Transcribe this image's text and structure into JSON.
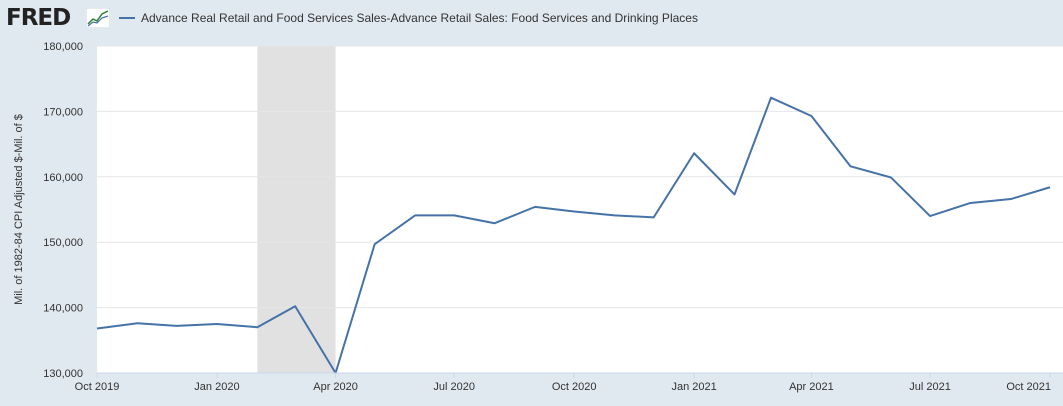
{
  "header": {
    "logo_text": "FRED",
    "logo_graph_icon": "trend-line-icon",
    "legend_label": "Advance Real Retail and Food Services Sales-Advance Retail Sales: Food Services and Drinking Places"
  },
  "colors": {
    "series": "#4572a7",
    "recession": "#e1e1e1",
    "plot_bg": "#ffffff",
    "page_bg": "#e1e9f0",
    "grid": "#e6e6e6"
  },
  "chart_data": {
    "type": "line",
    "title": "",
    "xlabel": "",
    "ylabel": "Mil. of 1982-84 CPI Adjusted $-Mil. of $",
    "ylim": [
      130000,
      180000
    ],
    "xlim": [
      "2019-10-01",
      "2021-10-01"
    ],
    "y_ticks": [
      130000,
      140000,
      150000,
      160000,
      170000,
      180000
    ],
    "y_tick_labels": [
      "130,000",
      "140,000",
      "150,000",
      "160,000",
      "170,000",
      "180,000"
    ],
    "x_ticks": [
      "2019-10-01",
      "2020-01-01",
      "2020-04-01",
      "2020-07-01",
      "2020-10-01",
      "2021-01-01",
      "2021-04-01",
      "2021-07-01",
      "2021-10-01"
    ],
    "x_tick_labels": [
      "Oct 2019",
      "Jan 2020",
      "Apr 2020",
      "Jul 2020",
      "Oct 2020",
      "Jan 2021",
      "Apr 2021",
      "Jul 2021",
      "Oct 2021"
    ],
    "grid": "horizontal",
    "legend": "top",
    "recession_shading": [
      [
        "2020-02-01",
        "2020-04-01"
      ]
    ],
    "series": [
      {
        "name": "Advance Real Retail and Food Services Sales-Advance Retail Sales: Food Services and Drinking Places",
        "x": [
          "2019-10-01",
          "2019-11-01",
          "2019-12-01",
          "2020-01-01",
          "2020-02-01",
          "2020-03-01",
          "2020-04-01",
          "2020-05-01",
          "2020-06-01",
          "2020-07-01",
          "2020-08-01",
          "2020-09-01",
          "2020-10-01",
          "2020-11-01",
          "2020-12-01",
          "2021-01-01",
          "2021-02-01",
          "2021-03-01",
          "2021-04-01",
          "2021-05-01",
          "2021-06-01",
          "2021-07-01",
          "2021-08-01",
          "2021-09-01",
          "2021-10-01"
        ],
        "values": [
          136800,
          137600,
          137200,
          137500,
          137000,
          140200,
          130000,
          149700,
          154100,
          154100,
          152900,
          155400,
          154700,
          154100,
          153800,
          163600,
          157300,
          172100,
          169300,
          161600,
          159900,
          154000,
          156000,
          156600,
          158400
        ]
      }
    ]
  }
}
